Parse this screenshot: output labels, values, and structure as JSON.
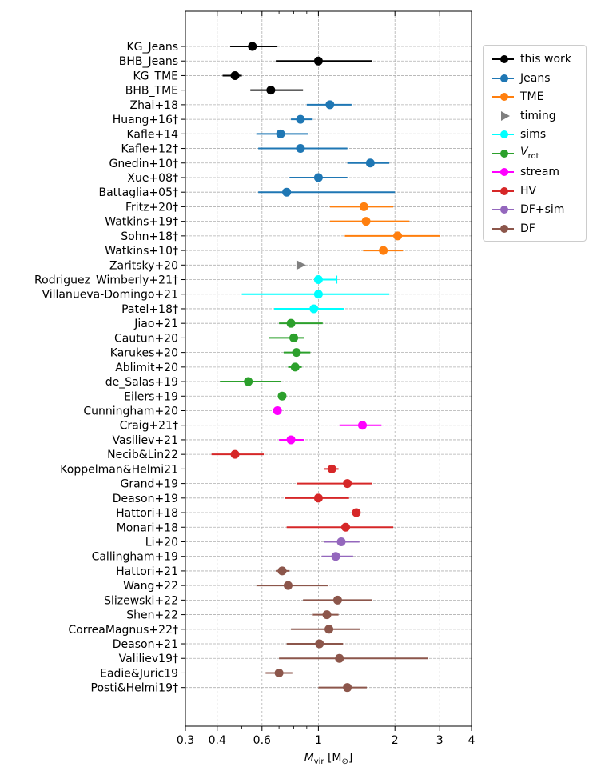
{
  "chart_data": {
    "type": "errorbar",
    "xscale": "log",
    "xlim": [
      0.3,
      4
    ],
    "xlabel": "M_vir [M_⊙]",
    "xlabel_main": "M",
    "xlabel_sub": "vir",
    "xlabel_unit": " [M",
    "xlabel_unit_sub": "⊙",
    "xlabel_close": "]",
    "xticks": [
      0.3,
      0.4,
      0.6,
      1,
      2,
      3,
      4
    ],
    "xtick_labels": [
      "0.3",
      "0.4",
      "0.6",
      "1",
      "2",
      "3",
      "4"
    ],
    "grid": true,
    "legend_position": "right",
    "legend": [
      {
        "key": "this_work",
        "label": "this work",
        "color": "#000000",
        "marker": "circle"
      },
      {
        "key": "jeans",
        "label": "Jeans",
        "color": "#1f77b4",
        "marker": "circle"
      },
      {
        "key": "tme",
        "label": "TME",
        "color": "#ff7f0e",
        "marker": "circle"
      },
      {
        "key": "timing",
        "label": "timing",
        "color": "#7f7f7f",
        "marker": "triangle"
      },
      {
        "key": "sims",
        "label": "sims",
        "color": "#00ffff",
        "marker": "circle"
      },
      {
        "key": "vrot",
        "label": "V",
        "label_sub": "rot",
        "color": "#2ca02c",
        "marker": "circle"
      },
      {
        "key": "stream",
        "label": "stream",
        "color": "#ff00ff",
        "marker": "circle"
      },
      {
        "key": "hv",
        "label": "HV",
        "color": "#d62728",
        "marker": "circle"
      },
      {
        "key": "dfsim",
        "label": "DF+sim",
        "color": "#9467bd",
        "marker": "circle"
      },
      {
        "key": "df",
        "label": "DF",
        "color": "#8c564b",
        "marker": "circle"
      }
    ],
    "series": [
      {
        "label": "KG_Jeans",
        "group": "this_work",
        "value": 0.55,
        "lo": 0.45,
        "hi": 0.69
      },
      {
        "label": "BHB_Jeans",
        "group": "this_work",
        "value": 1.0,
        "lo": 0.68,
        "hi": 1.63
      },
      {
        "label": "KG_TME",
        "group": "this_work",
        "value": 0.47,
        "lo": 0.42,
        "hi": 0.5
      },
      {
        "label": "BHB_TME",
        "group": "this_work",
        "value": 0.65,
        "lo": 0.54,
        "hi": 0.87
      },
      {
        "label": "Zhai+18",
        "group": "jeans",
        "value": 1.11,
        "lo": 0.9,
        "hi": 1.35
      },
      {
        "label": "Huang+16†",
        "group": "jeans",
        "value": 0.85,
        "lo": 0.78,
        "hi": 0.95
      },
      {
        "label": "Kafle+14",
        "group": "jeans",
        "value": 0.71,
        "lo": 0.57,
        "hi": 0.91
      },
      {
        "label": "Kafle+12†",
        "group": "jeans",
        "value": 0.85,
        "lo": 0.58,
        "hi": 1.3
      },
      {
        "label": "Gnedin+10†",
        "group": "jeans",
        "value": 1.6,
        "lo": 1.3,
        "hi": 1.9
      },
      {
        "label": "Xue+08†",
        "group": "jeans",
        "value": 1.0,
        "lo": 0.77,
        "hi": 1.3
      },
      {
        "label": "Battaglia+05†",
        "group": "jeans",
        "value": 0.75,
        "lo": 0.58,
        "hi": 2.0
      },
      {
        "label": "Fritz+20†",
        "group": "tme",
        "value": 1.51,
        "lo": 1.11,
        "hi": 1.97
      },
      {
        "label": "Watkins+19†",
        "group": "tme",
        "value": 1.54,
        "lo": 1.11,
        "hi": 2.28
      },
      {
        "label": "Sohn+18†",
        "group": "tme",
        "value": 2.05,
        "lo": 1.27,
        "hi": 3.0
      },
      {
        "label": "Watkins+10†",
        "group": "tme",
        "value": 1.8,
        "lo": 1.5,
        "hi": 2.15
      },
      {
        "label": "Zaritsky+20",
        "group": "timing",
        "value": 0.85,
        "lo": null,
        "hi": null
      },
      {
        "label": "Rodriguez_Wimberly+21†",
        "group": "sims",
        "value": 1.0,
        "lo": 1.0,
        "hi": 1.18,
        "capped": true
      },
      {
        "label": "Villanueva-Domingo+21",
        "group": "sims",
        "value": 1.0,
        "lo": 0.5,
        "hi": 1.9
      },
      {
        "label": "Patel+18†",
        "group": "sims",
        "value": 0.96,
        "lo": 0.67,
        "hi": 1.26
      },
      {
        "label": "Jiao+21",
        "group": "vrot",
        "value": 0.78,
        "lo": 0.7,
        "hi": 1.04
      },
      {
        "label": "Cautun+20",
        "group": "vrot",
        "value": 0.8,
        "lo": 0.64,
        "hi": 0.88
      },
      {
        "label": "Karukes+20",
        "group": "vrot",
        "value": 0.82,
        "lo": 0.73,
        "hi": 0.93
      },
      {
        "label": "Ablimit+20",
        "group": "vrot",
        "value": 0.81,
        "lo": 0.76,
        "hi": 0.86
      },
      {
        "label": "de_Salas+19",
        "group": "vrot",
        "value": 0.53,
        "lo": 0.41,
        "hi": 0.71
      },
      {
        "label": "Eilers+19",
        "group": "vrot",
        "value": 0.72,
        "lo": 0.72,
        "hi": 0.72
      },
      {
        "label": "Cunningham+20",
        "group": "stream",
        "value": 0.69,
        "lo": 0.69,
        "hi": 0.69
      },
      {
        "label": "Craig+21†",
        "group": "stream",
        "value": 1.49,
        "lo": 1.21,
        "hi": 1.77
      },
      {
        "label": "Vasiliev+21",
        "group": "stream",
        "value": 0.78,
        "lo": 0.7,
        "hi": 0.88
      },
      {
        "label": "Necib&Lin22",
        "group": "hv",
        "value": 0.47,
        "lo": 0.38,
        "hi": 0.61
      },
      {
        "label": "Koppelman&Helmi21",
        "group": "hv",
        "value": 1.13,
        "lo": 1.05,
        "hi": 1.2
      },
      {
        "label": "Grand+19",
        "group": "hv",
        "value": 1.3,
        "lo": 0.82,
        "hi": 1.62
      },
      {
        "label": "Deason+19",
        "group": "hv",
        "value": 1.0,
        "lo": 0.74,
        "hi": 1.32
      },
      {
        "label": "Hattori+18",
        "group": "hv",
        "value": 1.41,
        "lo": 1.41,
        "hi": 1.41
      },
      {
        "label": "Monari+18",
        "group": "hv",
        "value": 1.28,
        "lo": 0.75,
        "hi": 1.97
      },
      {
        "label": "Li+20",
        "group": "dfsim",
        "value": 1.23,
        "lo": 1.05,
        "hi": 1.45
      },
      {
        "label": "Callingham+19",
        "group": "dfsim",
        "value": 1.17,
        "lo": 1.03,
        "hi": 1.37
      },
      {
        "label": "Hattori+21",
        "group": "df",
        "value": 0.72,
        "lo": 0.68,
        "hi": 0.77
      },
      {
        "label": "Wang+22",
        "group": "df",
        "value": 0.76,
        "lo": 0.57,
        "hi": 1.09
      },
      {
        "label": "Slizewski+22",
        "group": "df",
        "value": 1.19,
        "lo": 0.87,
        "hi": 1.62
      },
      {
        "label": "Shen+22",
        "group": "df",
        "value": 1.08,
        "lo": 0.95,
        "hi": 1.2
      },
      {
        "label": "CorreaMagnus+22†",
        "group": "df",
        "value": 1.1,
        "lo": 0.78,
        "hi": 1.46
      },
      {
        "label": "Deason+21",
        "group": "df",
        "value": 1.01,
        "lo": 0.75,
        "hi": 1.25
      },
      {
        "label": "Valiliev19†",
        "group": "df",
        "value": 1.21,
        "lo": 0.7,
        "hi": 2.7
      },
      {
        "label": "Eadie&Juric19",
        "group": "df",
        "value": 0.7,
        "lo": 0.62,
        "hi": 0.79
      },
      {
        "label": "Posti&Helmi19†",
        "group": "df",
        "value": 1.3,
        "lo": 1.0,
        "hi": 1.55
      }
    ]
  }
}
